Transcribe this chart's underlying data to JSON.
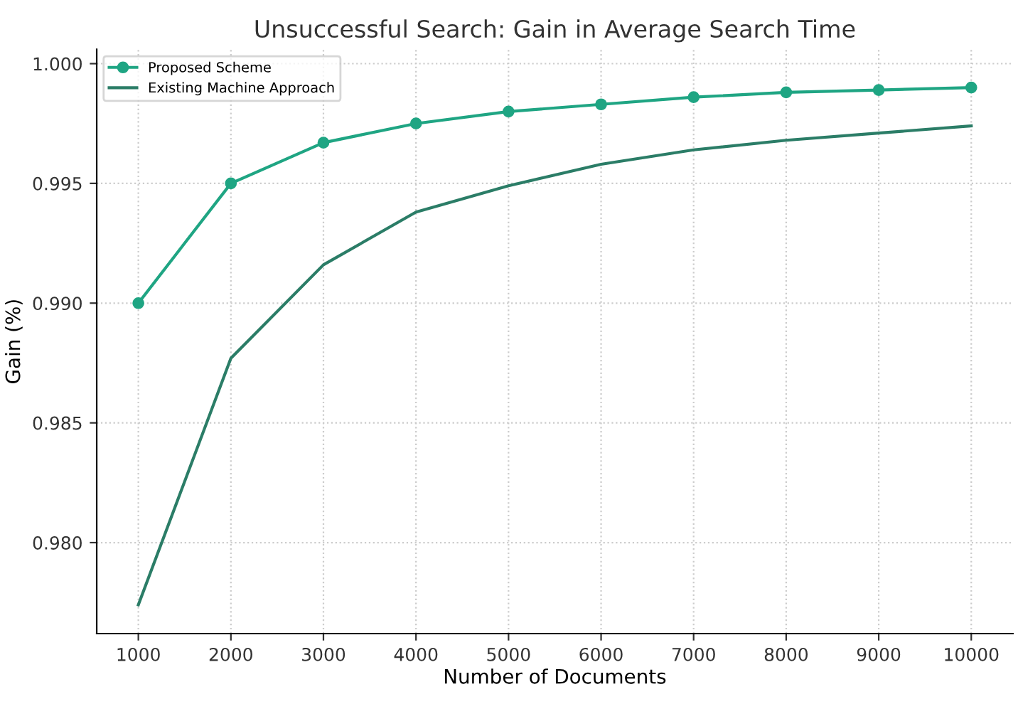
{
  "chart_data": {
    "type": "line",
    "title": "Unsuccessful Search: Gain in Average Search Time",
    "xlabel": "Number of Documents",
    "ylabel": "Gain (%)",
    "x": [
      1000,
      2000,
      3000,
      4000,
      5000,
      6000,
      7000,
      8000,
      9000,
      10000
    ],
    "series": [
      {
        "name": "Proposed Scheme",
        "color": "#1fa583",
        "marker": "circle",
        "values": [
          0.99,
          0.995,
          0.9967,
          0.9975,
          0.998,
          0.9983,
          0.9986,
          0.9988,
          0.9989,
          0.999
        ]
      },
      {
        "name": "Existing Machine Approach",
        "color": "#2b7d67",
        "marker": "none",
        "values": [
          0.9774,
          0.9877,
          0.9916,
          0.9938,
          0.9949,
          0.9958,
          0.9964,
          0.9968,
          0.9971,
          0.9974
        ]
      }
    ],
    "xlim": [
      550,
      10450
    ],
    "ylim": [
      0.9762,
      1.0006
    ],
    "xticks": [
      1000,
      2000,
      3000,
      4000,
      5000,
      6000,
      7000,
      8000,
      9000,
      10000
    ],
    "yticks": [
      {
        "value": 0.98,
        "label": "0.980"
      },
      {
        "value": 0.985,
        "label": "0.985"
      },
      {
        "value": 0.99,
        "label": "0.990"
      },
      {
        "value": 0.995,
        "label": "0.995"
      },
      {
        "value": 1.0,
        "label": "1.000"
      }
    ],
    "grid": true,
    "legend": "top left",
    "line_style": "solid"
  }
}
